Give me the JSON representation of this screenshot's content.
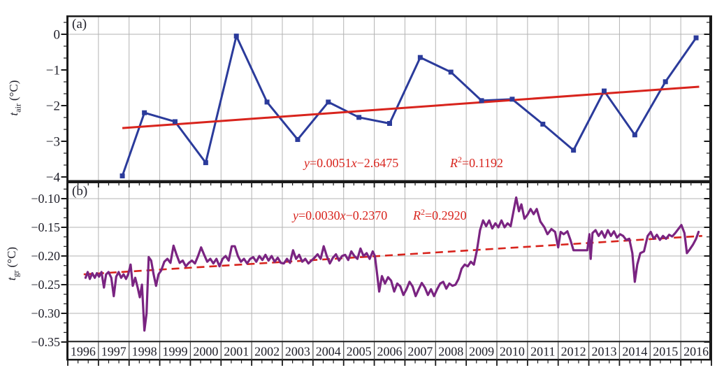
{
  "figure": {
    "colors": {
      "series_a_blue": "#2b3b9b",
      "trend_red": "#d8241d",
      "series_b_purple": "#7a2481",
      "grid_gray": "#b3b3b3",
      "axis_black": "#1a1a1a",
      "text_dark": "#21212b",
      "row_divider": "#4a4a4a"
    },
    "x_year_labels": [
      "1996",
      "1997",
      "1998",
      "1999",
      "2000",
      "2001",
      "2002",
      "2003",
      "2004",
      "2005",
      "2006",
      "2007",
      "2008",
      "2009",
      "2010",
      "2011",
      "2012",
      "2013",
      "2014",
      "2015",
      "2016"
    ],
    "panels": [
      {
        "letter": "(a)",
        "y_axis_title": {
          "symbol": "t",
          "subscript": "air",
          "unit": "(°C)"
        },
        "y_tick_labels": [
          "0",
          "−1",
          "−2",
          "−3",
          "−4"
        ],
        "equation": {
          "y": "y",
          "coef": "=0.0051",
          "x": "x",
          "intercept": "−2.6475"
        },
        "r_squared": {
          "symbol": "R",
          "exponent": "2",
          "value": "=0.1192"
        }
      },
      {
        "letter": "(b)",
        "y_axis_title": {
          "symbol": "t",
          "subscript": "gr",
          "unit": "(°C)"
        },
        "y_tick_labels": [
          "−0.10",
          "−0.15",
          "−0.20",
          "−0.25",
          "−0.30",
          "−0.35"
        ],
        "equation": {
          "y": "y",
          "coef": "=0.0030",
          "x": "x",
          "intercept": "−0.2370"
        },
        "r_squared": {
          "symbol": "R",
          "exponent": "2",
          "value": "=0.2920"
        }
      }
    ]
  },
  "chart_data": [
    {
      "type": "line",
      "panel": "a",
      "title": "(a)",
      "ylabel": "t_air (°C)",
      "ylim": [
        -4.1,
        0.51
      ],
      "xlim": [
        1996,
        2017
      ],
      "grid": "vertical year lines + zero line",
      "marker": "square",
      "categories": [
        1997,
        1998,
        1999,
        2000,
        2001,
        2002,
        2003,
        2004,
        2005,
        2006,
        2007,
        2008,
        2009,
        2010,
        2011,
        2012,
        2013,
        2014,
        2015,
        2016
      ],
      "values": [
        -3.97,
        -2.2,
        -2.45,
        -3.6,
        -0.05,
        -1.9,
        -2.95,
        -1.9,
        -2.33,
        -2.5,
        -0.65,
        -1.06,
        -1.86,
        -1.82,
        -2.52,
        -3.25,
        -1.59,
        -2.82,
        -1.33,
        -0.1
      ],
      "y_ticks": [
        0,
        -1,
        -2,
        -3,
        -4
      ],
      "first_point_x_offset_years": 0.28,
      "trend": {
        "label": "y=0.0051x−2.6475",
        "r2": "R²=0.1192",
        "style": "solid",
        "x1": 1997.78,
        "v1": -2.63,
        "x2": 2016.6,
        "v2": -1.47
      }
    },
    {
      "type": "line",
      "panel": "b",
      "title": "(b)",
      "ylabel": "t_gr (°C)",
      "ylim": [
        -0.352,
        -0.073
      ],
      "xlim": [
        1996,
        2017
      ],
      "grid": "vertical year lines + horizontal 0.05 lines",
      "y_ticks": [
        -0.1,
        -0.15,
        -0.2,
        -0.25,
        -0.3,
        -0.35
      ],
      "trend": {
        "label": "y=0.0030x−0.2370",
        "r2": "R²=0.2920",
        "style": "dashed",
        "x1": 1996.52,
        "v1": -0.232,
        "x2": 2016.7,
        "v2": -0.165
      },
      "points": [
        [
          1996.58,
          -0.238
        ],
        [
          1996.65,
          -0.228
        ],
        [
          1996.72,
          -0.24
        ],
        [
          1996.8,
          -0.23
        ],
        [
          1996.88,
          -0.238
        ],
        [
          1996.95,
          -0.23
        ],
        [
          1997.02,
          -0.236
        ],
        [
          1997.1,
          -0.228
        ],
        [
          1997.18,
          -0.255
        ],
        [
          1997.25,
          -0.232
        ],
        [
          1997.33,
          -0.228
        ],
        [
          1997.42,
          -0.238
        ],
        [
          1997.5,
          -0.27
        ],
        [
          1997.58,
          -0.236
        ],
        [
          1997.66,
          -0.228
        ],
        [
          1997.74,
          -0.238
        ],
        [
          1997.82,
          -0.232
        ],
        [
          1997.9,
          -0.24
        ],
        [
          1997.97,
          -0.232
        ],
        [
          1998.05,
          -0.215
        ],
        [
          1998.12,
          -0.252
        ],
        [
          1998.2,
          -0.238
        ],
        [
          1998.28,
          -0.255
        ],
        [
          1998.35,
          -0.272
        ],
        [
          1998.42,
          -0.25
        ],
        [
          1998.5,
          -0.33
        ],
        [
          1998.57,
          -0.3
        ],
        [
          1998.64,
          -0.202
        ],
        [
          1998.72,
          -0.208
        ],
        [
          1998.8,
          -0.232
        ],
        [
          1998.88,
          -0.252
        ],
        [
          1998.96,
          -0.232
        ],
        [
          1999.05,
          -0.225
        ],
        [
          1999.15,
          -0.21
        ],
        [
          1999.25,
          -0.205
        ],
        [
          1999.35,
          -0.212
        ],
        [
          1999.45,
          -0.182
        ],
        [
          1999.55,
          -0.198
        ],
        [
          1999.65,
          -0.212
        ],
        [
          1999.75,
          -0.208
        ],
        [
          1999.85,
          -0.218
        ],
        [
          1999.95,
          -0.212
        ],
        [
          2000.05,
          -0.208
        ],
        [
          2000.15,
          -0.213
        ],
        [
          2000.25,
          -0.2
        ],
        [
          2000.35,
          -0.185
        ],
        [
          2000.45,
          -0.198
        ],
        [
          2000.55,
          -0.21
        ],
        [
          2000.65,
          -0.205
        ],
        [
          2000.75,
          -0.213
        ],
        [
          2000.85,
          -0.205
        ],
        [
          2000.95,
          -0.218
        ],
        [
          2001.05,
          -0.205
        ],
        [
          2001.15,
          -0.2
        ],
        [
          2001.25,
          -0.208
        ],
        [
          2001.35,
          -0.183
        ],
        [
          2001.45,
          -0.183
        ],
        [
          2001.55,
          -0.2
        ],
        [
          2001.65,
          -0.21
        ],
        [
          2001.75,
          -0.205
        ],
        [
          2001.85,
          -0.213
        ],
        [
          2001.95,
          -0.205
        ],
        [
          2002.05,
          -0.202
        ],
        [
          2002.15,
          -0.21
        ],
        [
          2002.25,
          -0.2
        ],
        [
          2002.35,
          -0.207
        ],
        [
          2002.45,
          -0.198
        ],
        [
          2002.55,
          -0.208
        ],
        [
          2002.65,
          -0.2
        ],
        [
          2002.75,
          -0.21
        ],
        [
          2002.85,
          -0.203
        ],
        [
          2002.95,
          -0.212
        ],
        [
          2003.05,
          -0.213
        ],
        [
          2003.15,
          -0.205
        ],
        [
          2003.25,
          -0.212
        ],
        [
          2003.35,
          -0.19
        ],
        [
          2003.45,
          -0.205
        ],
        [
          2003.55,
          -0.198
        ],
        [
          2003.65,
          -0.21
        ],
        [
          2003.75,
          -0.205
        ],
        [
          2003.85,
          -0.213
        ],
        [
          2003.95,
          -0.208
        ],
        [
          2004.05,
          -0.203
        ],
        [
          2004.15,
          -0.197
        ],
        [
          2004.25,
          -0.205
        ],
        [
          2004.35,
          -0.183
        ],
        [
          2004.45,
          -0.2
        ],
        [
          2004.55,
          -0.213
        ],
        [
          2004.65,
          -0.203
        ],
        [
          2004.75,
          -0.197
        ],
        [
          2004.85,
          -0.208
        ],
        [
          2004.95,
          -0.2
        ],
        [
          2005.05,
          -0.198
        ],
        [
          2005.15,
          -0.207
        ],
        [
          2005.25,
          -0.192
        ],
        [
          2005.35,
          -0.2
        ],
        [
          2005.45,
          -0.205
        ],
        [
          2005.55,
          -0.187
        ],
        [
          2005.65,
          -0.2
        ],
        [
          2005.75,
          -0.195
        ],
        [
          2005.85,
          -0.205
        ],
        [
          2005.95,
          -0.192
        ],
        [
          2006.02,
          -0.2
        ],
        [
          2006.1,
          -0.235
        ],
        [
          2006.16,
          -0.262
        ],
        [
          2006.25,
          -0.235
        ],
        [
          2006.35,
          -0.248
        ],
        [
          2006.45,
          -0.237
        ],
        [
          2006.55,
          -0.243
        ],
        [
          2006.65,
          -0.262
        ],
        [
          2006.75,
          -0.248
        ],
        [
          2006.85,
          -0.253
        ],
        [
          2006.95,
          -0.268
        ],
        [
          2007.05,
          -0.258
        ],
        [
          2007.15,
          -0.245
        ],
        [
          2007.25,
          -0.253
        ],
        [
          2007.35,
          -0.27
        ],
        [
          2007.45,
          -0.258
        ],
        [
          2007.55,
          -0.247
        ],
        [
          2007.65,
          -0.255
        ],
        [
          2007.75,
          -0.268
        ],
        [
          2007.85,
          -0.258
        ],
        [
          2007.95,
          -0.27
        ],
        [
          2008.05,
          -0.258
        ],
        [
          2008.15,
          -0.248
        ],
        [
          2008.25,
          -0.245
        ],
        [
          2008.35,
          -0.257
        ],
        [
          2008.45,
          -0.248
        ],
        [
          2008.55,
          -0.252
        ],
        [
          2008.65,
          -0.25
        ],
        [
          2008.75,
          -0.24
        ],
        [
          2008.85,
          -0.222
        ],
        [
          2008.95,
          -0.215
        ],
        [
          2009.05,
          -0.218
        ],
        [
          2009.15,
          -0.21
        ],
        [
          2009.25,
          -0.215
        ],
        [
          2009.35,
          -0.19
        ],
        [
          2009.45,
          -0.155
        ],
        [
          2009.55,
          -0.138
        ],
        [
          2009.65,
          -0.148
        ],
        [
          2009.75,
          -0.138
        ],
        [
          2009.85,
          -0.152
        ],
        [
          2009.95,
          -0.143
        ],
        [
          2010.05,
          -0.15
        ],
        [
          2010.15,
          -0.138
        ],
        [
          2010.25,
          -0.15
        ],
        [
          2010.35,
          -0.143
        ],
        [
          2010.45,
          -0.148
        ],
        [
          2010.55,
          -0.12
        ],
        [
          2010.63,
          -0.098
        ],
        [
          2010.72,
          -0.122
        ],
        [
          2010.8,
          -0.11
        ],
        [
          2010.9,
          -0.135
        ],
        [
          2011.0,
          -0.128
        ],
        [
          2011.1,
          -0.118
        ],
        [
          2011.2,
          -0.127
        ],
        [
          2011.3,
          -0.118
        ],
        [
          2011.42,
          -0.14
        ],
        [
          2011.55,
          -0.15
        ],
        [
          2011.65,
          -0.162
        ],
        [
          2011.78,
          -0.153
        ],
        [
          2011.9,
          -0.158
        ],
        [
          2012.0,
          -0.185
        ],
        [
          2012.08,
          -0.158
        ],
        [
          2012.18,
          -0.162
        ],
        [
          2012.3,
          -0.157
        ],
        [
          2012.4,
          -0.172
        ],
        [
          2012.5,
          -0.19
        ],
        [
          2012.65,
          -0.19
        ],
        [
          2012.8,
          -0.19
        ],
        [
          2012.95,
          -0.19
        ],
        [
          2013.02,
          -0.162
        ],
        [
          2013.06,
          -0.205
        ],
        [
          2013.12,
          -0.16
        ],
        [
          2013.22,
          -0.155
        ],
        [
          2013.32,
          -0.165
        ],
        [
          2013.42,
          -0.157
        ],
        [
          2013.52,
          -0.168
        ],
        [
          2013.62,
          -0.155
        ],
        [
          2013.72,
          -0.165
        ],
        [
          2013.82,
          -0.157
        ],
        [
          2013.92,
          -0.168
        ],
        [
          2014.02,
          -0.162
        ],
        [
          2014.12,
          -0.165
        ],
        [
          2014.22,
          -0.172
        ],
        [
          2014.32,
          -0.17
        ],
        [
          2014.42,
          -0.195
        ],
        [
          2014.5,
          -0.245
        ],
        [
          2014.58,
          -0.215
        ],
        [
          2014.68,
          -0.195
        ],
        [
          2014.8,
          -0.192
        ],
        [
          2014.92,
          -0.165
        ],
        [
          2015.02,
          -0.158
        ],
        [
          2015.12,
          -0.17
        ],
        [
          2015.22,
          -0.163
        ],
        [
          2015.32,
          -0.172
        ],
        [
          2015.42,
          -0.165
        ],
        [
          2015.52,
          -0.17
        ],
        [
          2015.62,
          -0.163
        ],
        [
          2015.72,
          -0.166
        ],
        [
          2015.82,
          -0.16
        ],
        [
          2015.92,
          -0.153
        ],
        [
          2016.02,
          -0.146
        ],
        [
          2016.12,
          -0.16
        ],
        [
          2016.2,
          -0.195
        ],
        [
          2016.3,
          -0.188
        ],
        [
          2016.4,
          -0.18
        ],
        [
          2016.5,
          -0.17
        ],
        [
          2016.58,
          -0.158
        ]
      ]
    }
  ]
}
